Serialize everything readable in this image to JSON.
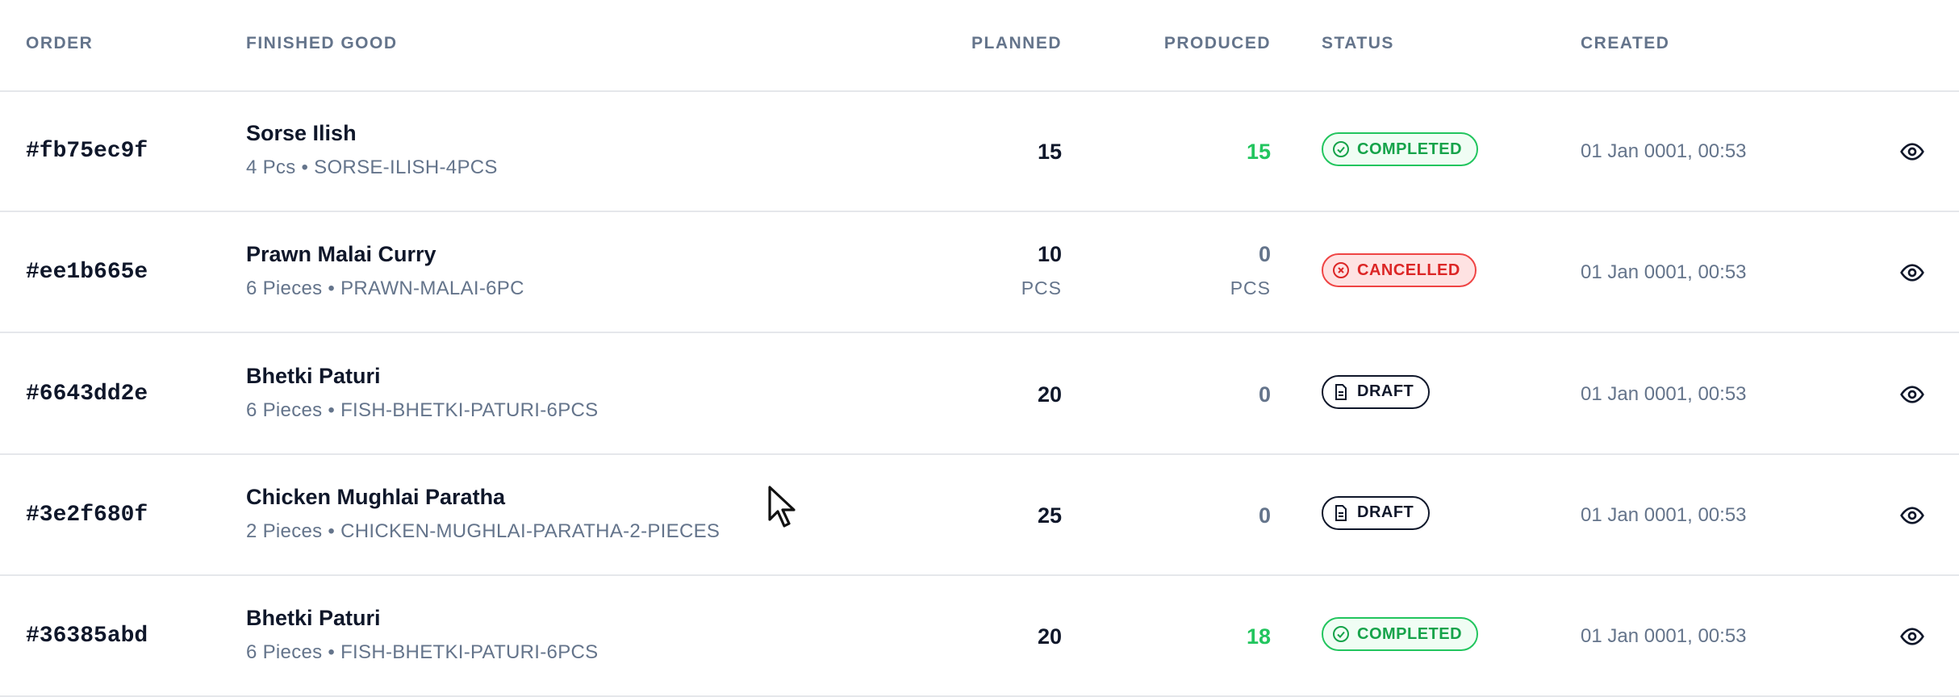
{
  "table": {
    "header": [
      "ORDER",
      "FINISHED GOOD",
      "PLANNED",
      "PRODUCED",
      "STATUS",
      "CREATED"
    ],
    "rows": [
      {
        "order": "#fb75ec9f",
        "name": "Sorse Ilish",
        "detail": "4 Pcs • SORSE-ILISH-4PCS",
        "planned": 15,
        "produced": 15,
        "produced_color": "#22c55e",
        "status": "COMPLETED",
        "status_color": "#16a34a",
        "status_border": "#22c55e",
        "status_bg": "#f0fdf4",
        "created": "01 Jan 0001, 00:53"
      },
      {
        "order": "#ee1b665e",
        "name": "Prawn Malai Curry",
        "detail": "6 Pieces • PRAWN-MALAI-6PC",
        "planned": 10,
        "planned_unit": "PCS",
        "produced": 0,
        "produced_unit": "PCS",
        "produced_color": "#64748b",
        "status": "CANCELLED",
        "status_color": "#dc2626",
        "status_border": "#ef4444",
        "status_bg": "#fee2e2",
        "created": "01 Jan 0001, 00:53"
      },
      {
        "order": "#6643dd2e",
        "name": "Bhetki Paturi",
        "detail": "6 Pieces • FISH-BHETKI-PATURI-6PCS",
        "planned": 20,
        "produced": 0,
        "produced_color": "#64748b",
        "status": "DRAFT",
        "status_color": "#0f172a",
        "status_border": "#0f172a",
        "status_bg": "#ffffff",
        "created": "01 Jan 0001, 00:53"
      },
      {
        "order": "#3e2f680f",
        "name": "Chicken Mughlai Paratha",
        "detail": "2 Pieces • CHICKEN-MUGHLAI-PARATHA-2-PIECES",
        "planned": 25,
        "produced": 0,
        "produced_color": "#64748b",
        "status": "DRAFT",
        "status_color": "#0f172a",
        "status_border": "#0f172a",
        "status_bg": "#ffffff",
        "created": "01 Jan 0001, 00:53"
      },
      {
        "order": "#36385abd",
        "name": "Bhetki Paturi",
        "detail": "6 Pieces • FISH-BHETKI-PATURI-6PCS",
        "planned": 20,
        "produced": 18,
        "produced_color": "#22c55e",
        "status": "COMPLETED",
        "status_color": "#16a34a",
        "status_border": "#22c55e",
        "status_bg": "#f0fdf4",
        "created": "01 Jan 0001, 00:53"
      }
    ]
  }
}
